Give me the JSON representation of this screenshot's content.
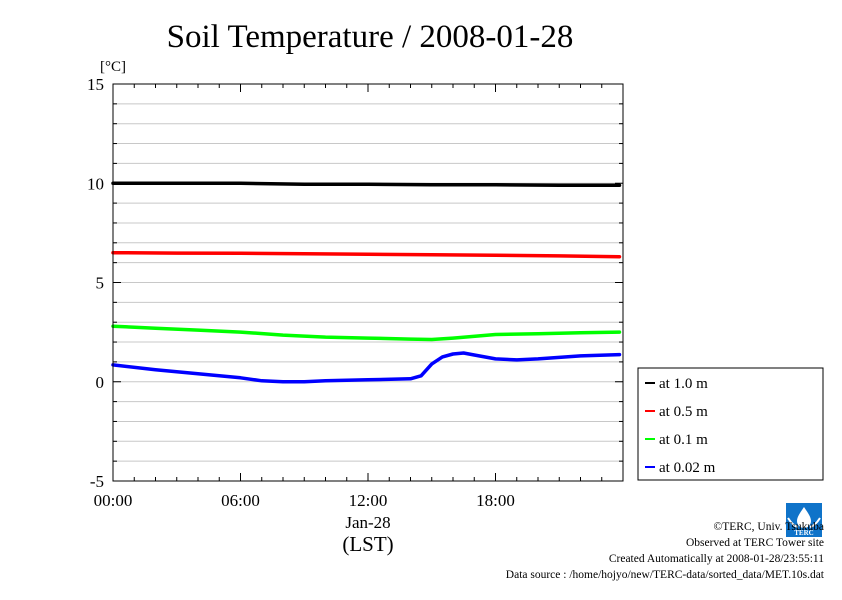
{
  "chart_data": {
    "type": "line",
    "title": "Soil Temperature / 2008-01-28",
    "y_unit": "[°C]",
    "ylim": [
      -5,
      15
    ],
    "y_ticks": [
      -5,
      0,
      5,
      10,
      15
    ],
    "y_tick_labels": [
      "-5",
      "0",
      "5",
      "10",
      "15"
    ],
    "xlim": [
      "2008-01-28 00:00",
      "2008-01-28 24:00"
    ],
    "x_ticks": [
      "00:00",
      "06:00",
      "12:00",
      "18:00"
    ],
    "x_tick_labels": [
      "00:00",
      "06:00",
      "12:00",
      "18:00"
    ],
    "x_date_label": "Jan-28",
    "xlabel": "(LST)",
    "grid": true,
    "legend_position": "right",
    "series": [
      {
        "name": "at 1.0 m",
        "color": "#000000",
        "x": [
          "00:00",
          "03:00",
          "06:00",
          "09:00",
          "12:00",
          "15:00",
          "18:00",
          "21:00",
          "23:50"
        ],
        "y": [
          10.0,
          10.0,
          10.0,
          9.95,
          9.95,
          9.92,
          9.92,
          9.9,
          9.9
        ]
      },
      {
        "name": "at 0.5 m",
        "color": "#ff0000",
        "x": [
          "00:00",
          "03:00",
          "06:00",
          "09:00",
          "12:00",
          "15:00",
          "18:00",
          "21:00",
          "23:50"
        ],
        "y": [
          6.5,
          6.48,
          6.47,
          6.45,
          6.42,
          6.4,
          6.37,
          6.34,
          6.3
        ]
      },
      {
        "name": "at 0.1 m",
        "color": "#00ff00",
        "x": [
          "00:00",
          "02:00",
          "04:00",
          "06:00",
          "08:00",
          "10:00",
          "12:00",
          "14:00",
          "15:00",
          "16:00",
          "18:00",
          "20:00",
          "22:00",
          "23:50"
        ],
        "y": [
          2.8,
          2.7,
          2.6,
          2.5,
          2.35,
          2.25,
          2.2,
          2.15,
          2.13,
          2.2,
          2.38,
          2.42,
          2.47,
          2.5
        ]
      },
      {
        "name": "at 0.02 m",
        "color": "#0000ff",
        "x": [
          "00:00",
          "02:00",
          "04:00",
          "06:00",
          "07:00",
          "08:00",
          "09:00",
          "10:00",
          "12:00",
          "14:00",
          "14:30",
          "15:00",
          "15:30",
          "16:00",
          "16:30",
          "17:00",
          "18:00",
          "19:00",
          "20:00",
          "22:00",
          "23:50"
        ],
        "y": [
          0.85,
          0.6,
          0.4,
          0.2,
          0.05,
          0.0,
          0.0,
          0.05,
          0.1,
          0.15,
          0.3,
          0.9,
          1.25,
          1.4,
          1.45,
          1.35,
          1.15,
          1.1,
          1.15,
          1.3,
          1.37
        ]
      }
    ]
  },
  "credits": {
    "copyright": "©TERC, Univ. Tsukuba",
    "observed": "Observed at TERC Tower site",
    "created": "Created Automatically at 2008-01-28/23:55:11",
    "source": "Data source : /home/hojyo/new/TERC-data/sorted_data/MET.10s.dat"
  },
  "logo": {
    "text": "TERC",
    "color": "#0f73c9"
  }
}
